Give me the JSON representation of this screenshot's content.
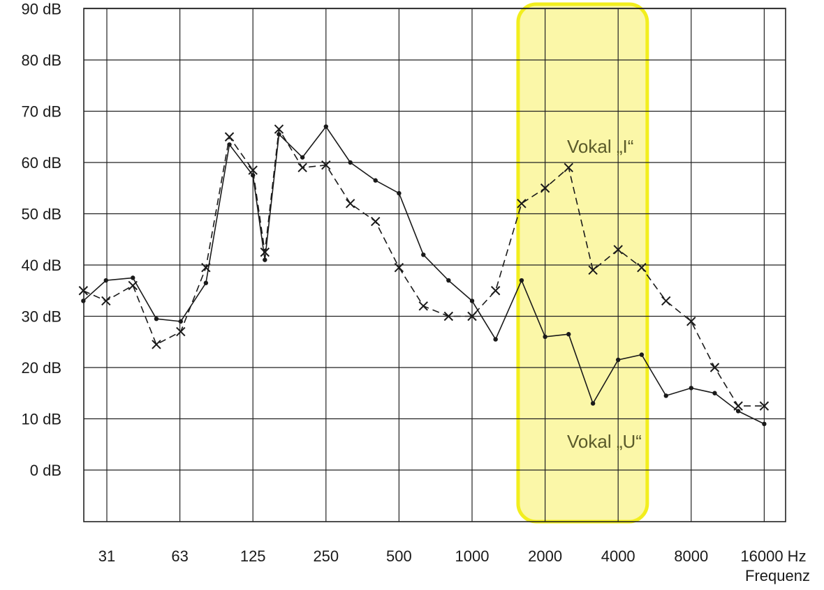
{
  "chart_data": {
    "type": "line",
    "title": "",
    "xlabel": "Frequenz",
    "x_unit": "Hz",
    "ylabel": "",
    "ylim": [
      -10,
      90
    ],
    "grid": true,
    "x_scale": "log2",
    "x_ticks": [
      "31",
      "63",
      "125",
      "250",
      "500",
      "1000",
      "2000",
      "4000",
      "8000",
      "16000 Hz"
    ],
    "y_ticks": [
      "0 dB",
      "10 dB",
      "20 dB",
      "30 dB",
      "40 dB",
      "50 dB",
      "60 dB",
      "70 dB",
      "80 dB",
      "90 dB"
    ],
    "annotations": [
      "Vokal „I“",
      "Vokal „U“"
    ],
    "highlight": {
      "x_range": [
        1600,
        5000
      ],
      "color": "#fbf7a8",
      "border_color": "#f2ee1e"
    },
    "series": [
      {
        "name": "Vokal „U“",
        "style": "solid",
        "marker": "dot",
        "color": "#1a1a1a",
        "points": [
          [
            25,
            33
          ],
          [
            31,
            37
          ],
          [
            40,
            37.5
          ],
          [
            50,
            29.5
          ],
          [
            63,
            29
          ],
          [
            80,
            36.5
          ],
          [
            100,
            63.5
          ],
          [
            125,
            57.5
          ],
          [
            140,
            41
          ],
          [
            160,
            65.5
          ],
          [
            200,
            61
          ],
          [
            250,
            67
          ],
          [
            315,
            60
          ],
          [
            400,
            56.5
          ],
          [
            500,
            54
          ],
          [
            630,
            42
          ],
          [
            800,
            37
          ],
          [
            1000,
            33
          ],
          [
            1250,
            25.5
          ],
          [
            1600,
            37
          ],
          [
            2000,
            26
          ],
          [
            2500,
            26.5
          ],
          [
            3150,
            13
          ],
          [
            4000,
            21.5
          ],
          [
            5000,
            22.5
          ],
          [
            6300,
            14.5
          ],
          [
            8000,
            16
          ],
          [
            10000,
            15
          ],
          [
            12500,
            11.5
          ],
          [
            16000,
            9
          ]
        ]
      },
      {
        "name": "Vokal „I“",
        "style": "dashed",
        "marker": "x",
        "color": "#1a1a1a",
        "points": [
          [
            25,
            35
          ],
          [
            31,
            33
          ],
          [
            40,
            36
          ],
          [
            50,
            24.5
          ],
          [
            63,
            27
          ],
          [
            80,
            39.5
          ],
          [
            100,
            65
          ],
          [
            125,
            58.5
          ],
          [
            140,
            42.5
          ],
          [
            160,
            66.5
          ],
          [
            200,
            59
          ],
          [
            250,
            59.5
          ],
          [
            315,
            52
          ],
          [
            400,
            48.5
          ],
          [
            500,
            39.5
          ],
          [
            630,
            32
          ],
          [
            800,
            30
          ],
          [
            1000,
            30
          ],
          [
            1250,
            35
          ],
          [
            1600,
            52
          ],
          [
            2000,
            55
          ],
          [
            2500,
            59
          ],
          [
            3150,
            39
          ],
          [
            4000,
            43
          ],
          [
            5000,
            39.5
          ],
          [
            6300,
            33
          ],
          [
            8000,
            29
          ],
          [
            10000,
            20
          ],
          [
            12500,
            12.5
          ],
          [
            16000,
            12.5
          ]
        ]
      }
    ]
  }
}
